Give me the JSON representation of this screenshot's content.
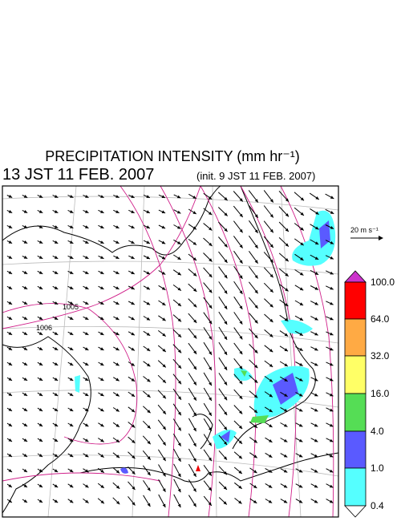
{
  "header": {
    "title": "PRECIPITATION INTENSITY (mm hr⁻¹)",
    "valid_time": "13 JST 11 FEB. 2007",
    "init_time": "(init. 9 JST 11 FEB. 2007)"
  },
  "map": {
    "reference_vector": "20 m s⁻¹",
    "contour_labels": [
      "1005",
      "1006"
    ]
  },
  "colorbar": {
    "labels": [
      "100.0",
      "64.0",
      "32.0",
      "16.0",
      "4.0",
      "1.0",
      "0.4"
    ]
  }
}
